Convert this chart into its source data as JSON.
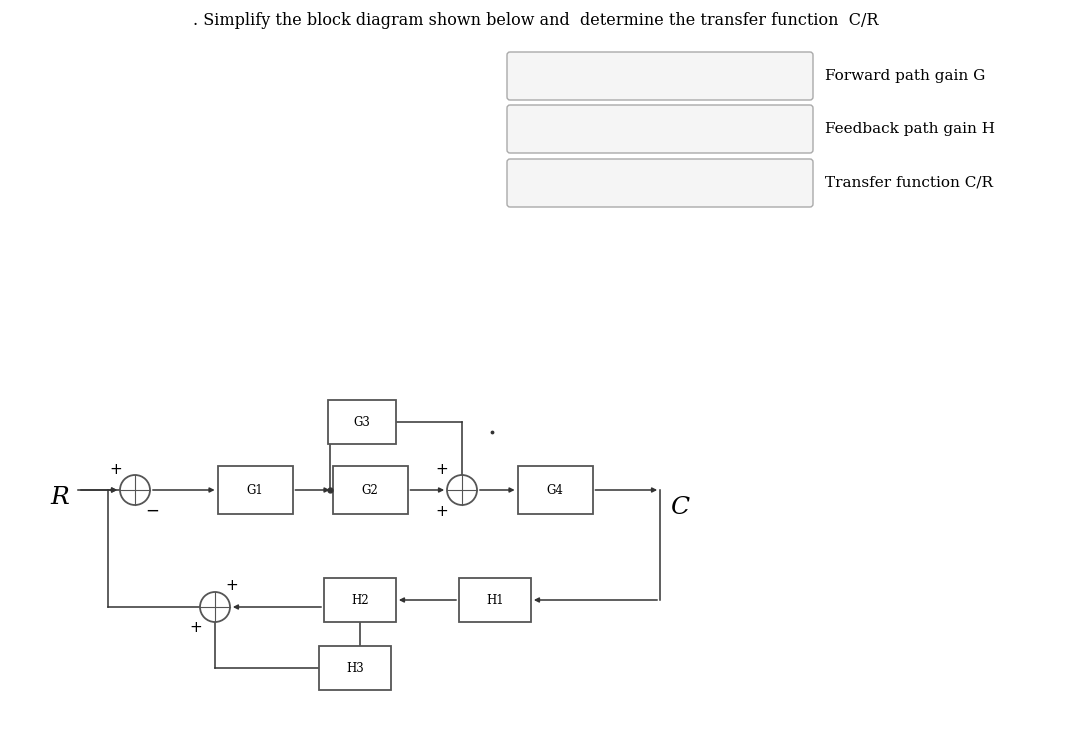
{
  "title": ". Simplify the block diagram shown below and  determine the transfer function  C/R",
  "title_fontsize": 11.5,
  "table_labels": [
    "Forward path gain G",
    "Feedback path gain H",
    "Transfer function C/R"
  ],
  "background_color": "#ffffff",
  "line_color": "#333333",
  "box_edge_color": "#555555",
  "text_color": "#000000",
  "lw": 1.1
}
